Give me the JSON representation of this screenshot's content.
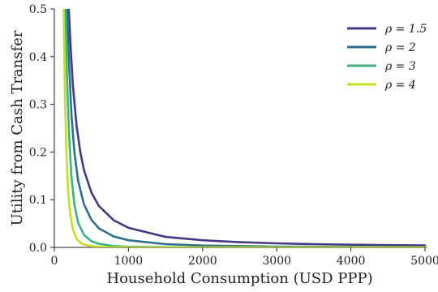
{
  "chart_data": {
    "type": "line",
    "title": "",
    "xlabel": "Household Consumption (USD PPP)",
    "ylabel": "Utility from Cash Transfer",
    "xlim": [
      0,
      5000
    ],
    "ylim": [
      0,
      0.5
    ],
    "x_ticks": [
      "0",
      "1000",
      "2000",
      "3000",
      "4000",
      "5000"
    ],
    "y_ticks": [
      "0.0",
      "0.1",
      "0.2",
      "0.3",
      "0.4",
      "0.5"
    ],
    "x_tick_values": [
      0,
      1000,
      2000,
      3000,
      4000,
      5000
    ],
    "y_tick_values": [
      0,
      0.1,
      0.2,
      0.3,
      0.4,
      0.5
    ],
    "grid": false,
    "legend_position": "top-right",
    "series": [
      {
        "name": "ρ = 1.5",
        "color": "#443a83",
        "x": [
          195,
          220,
          250,
          300,
          350,
          400,
          500,
          600,
          800,
          1000,
          1500,
          2000,
          2500,
          3000,
          3500,
          4000,
          4500,
          5000
        ],
        "y": [
          0.5,
          0.42,
          0.34,
          0.255,
          0.2,
          0.162,
          0.115,
          0.087,
          0.057,
          0.041,
          0.022,
          0.015,
          0.011,
          0.0085,
          0.0068,
          0.0057,
          0.0049,
          0.0042
        ]
      },
      {
        "name": "ρ = 2",
        "color": "#2f6f8e",
        "x": [
          175,
          200,
          230,
          270,
          320,
          400,
          500,
          600,
          800,
          1000,
          1500,
          2000,
          3000,
          4000,
          5000
        ],
        "y": [
          0.5,
          0.38,
          0.28,
          0.2,
          0.14,
          0.09,
          0.058,
          0.04,
          0.023,
          0.015,
          0.0068,
          0.0039,
          0.0017,
          0.001,
          0.0006
        ]
      },
      {
        "name": "ρ = 3",
        "color": "#3bb47f",
        "x": [
          150,
          170,
          200,
          230,
          270,
          320,
          400,
          500,
          600,
          800,
          1000,
          1500,
          2000,
          3000,
          5000
        ],
        "y": [
          0.5,
          0.36,
          0.23,
          0.15,
          0.09,
          0.052,
          0.026,
          0.013,
          0.0075,
          0.003,
          0.0015,
          0.0005,
          0.0002,
          5e-05,
          0.0
        ]
      },
      {
        "name": "ρ = 4",
        "color": "#c2df23",
        "x": [
          125,
          140,
          160,
          185,
          210,
          250,
          300,
          350,
          400,
          500,
          700,
          1000,
          2000,
          5000
        ],
        "y": [
          0.5,
          0.34,
          0.21,
          0.12,
          0.075,
          0.038,
          0.018,
          0.01,
          0.006,
          0.0025,
          0.0006,
          0.0001,
          0.0,
          0.0
        ]
      }
    ]
  }
}
